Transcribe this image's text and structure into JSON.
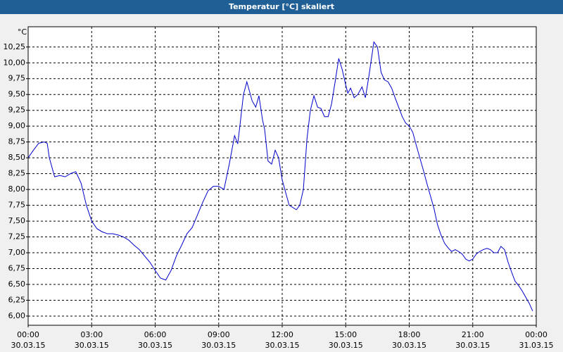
{
  "chart_data": {
    "type": "line",
    "title": "Temperatur [°C] skaliert",
    "y_label": "°C",
    "x": [
      0,
      0.25,
      0.5,
      0.75,
      0.9,
      1,
      1.25,
      1.5,
      1.75,
      2,
      2.25,
      2.5,
      2.75,
      3,
      3.25,
      3.5,
      3.75,
      4,
      4.25,
      4.5,
      4.75,
      5,
      5.25,
      5.5,
      5.75,
      6,
      6.25,
      6.5,
      6.75,
      7,
      7.25,
      7.5,
      7.75,
      8,
      8.25,
      8.5,
      8.75,
      9,
      9.25,
      9.5,
      9.75,
      9.9,
      10,
      10.17,
      10.33,
      10.58,
      10.75,
      10.9,
      11.07,
      11.17,
      11.33,
      11.5,
      11.67,
      11.83,
      12,
      12.33,
      12.67,
      12.83,
      13,
      13.17,
      13.33,
      13.5,
      13.67,
      13.83,
      14,
      14.17,
      14.33,
      14.5,
      14.67,
      14.83,
      15,
      15.1,
      15.23,
      15.4,
      15.57,
      15.77,
      15.93,
      16.1,
      16.33,
      16.5,
      16.67,
      16.83,
      17,
      17.17,
      17.33,
      17.5,
      17.67,
      17.83,
      18,
      18.17,
      18.33,
      18.5,
      18.67,
      18.83,
      19,
      19.17,
      19.33,
      19.5,
      19.67,
      19.83,
      20,
      20.17,
      20.33,
      20.5,
      20.67,
      20.83,
      21,
      21.17,
      21.33,
      21.5,
      21.67,
      21.83,
      22,
      22.17,
      22.33,
      22.5,
      22.67,
      22.83,
      23,
      23.17,
      23.33,
      23.5,
      23.67,
      23.83
    ],
    "values": [
      8.5,
      8.62,
      8.73,
      8.75,
      8.73,
      8.5,
      8.2,
      8.22,
      8.2,
      8.25,
      8.28,
      8.1,
      7.75,
      7.5,
      7.38,
      7.33,
      7.3,
      7.3,
      7.28,
      7.25,
      7.2,
      7.12,
      7.05,
      6.95,
      6.85,
      6.72,
      6.6,
      6.57,
      6.72,
      6.95,
      7.12,
      7.3,
      7.4,
      7.6,
      7.8,
      7.98,
      8.05,
      8.05,
      8.0,
      8.4,
      8.85,
      8.72,
      9.0,
      9.5,
      9.7,
      9.4,
      9.3,
      9.48,
      9.1,
      8.95,
      8.45,
      8.4,
      8.62,
      8.5,
      8.15,
      7.75,
      7.68,
      7.75,
      8.0,
      8.8,
      9.25,
      9.48,
      9.3,
      9.28,
      9.15,
      9.15,
      9.35,
      9.7,
      10.07,
      9.9,
      9.65,
      9.52,
      9.6,
      9.45,
      9.5,
      9.62,
      9.45,
      9.8,
      10.33,
      10.25,
      9.85,
      9.73,
      9.7,
      9.6,
      9.45,
      9.3,
      9.15,
      9.05,
      9.0,
      8.9,
      8.7,
      8.5,
      8.3,
      8.1,
      7.9,
      7.7,
      7.45,
      7.28,
      7.15,
      7.08,
      7.02,
      7.05,
      7.02,
      6.98,
      6.9,
      6.87,
      6.9,
      6.98,
      7.02,
      7.05,
      7.07,
      7.05,
      7.0,
      7.0,
      7.1,
      7.05,
      6.85,
      6.7,
      6.55,
      6.48,
      6.4,
      6.3,
      6.2,
      6.08
    ],
    "color": "#0000cc",
    "xlim": [
      0,
      24
    ],
    "xticks": [
      {
        "value": 0,
        "label": "00:00"
      },
      {
        "value": 3,
        "label": "03:00"
      },
      {
        "value": 6,
        "label": "06:00"
      },
      {
        "value": 9,
        "label": "09:00"
      },
      {
        "value": 12,
        "label": "12:00"
      },
      {
        "value": 15,
        "label": "15:00"
      },
      {
        "value": 18,
        "label": "18:00"
      },
      {
        "value": 21,
        "label": "21:00"
      },
      {
        "value": 24,
        "label": "00:00"
      }
    ],
    "xtick_dates": [
      "30.03.15",
      "30.03.15",
      "30.03.15",
      "30.03.15",
      "30.03.15",
      "30.03.15",
      "30.03.15",
      "30.03.15",
      "31.03.15"
    ],
    "ylim": [
      5.855,
      10.57
    ],
    "yticks": [
      {
        "value": 6,
        "label": "6,00"
      },
      {
        "value": 6.25,
        "label": "6,25"
      },
      {
        "value": 6.5,
        "label": "6,50"
      },
      {
        "value": 6.75,
        "label": "6,75"
      },
      {
        "value": 7,
        "label": "7,00"
      },
      {
        "value": 7.25,
        "label": "7,25"
      },
      {
        "value": 7.5,
        "label": "7,50"
      },
      {
        "value": 7.75,
        "label": "7,75"
      },
      {
        "value": 8,
        "label": "8,00"
      },
      {
        "value": 8.25,
        "label": "8,25"
      },
      {
        "value": 8.5,
        "label": "8,50"
      },
      {
        "value": 8.75,
        "label": "8,75"
      },
      {
        "value": 9,
        "label": "9,00"
      },
      {
        "value": 9.25,
        "label": "9,25"
      },
      {
        "value": 9.5,
        "label": "9,50"
      },
      {
        "value": 9.75,
        "label": "9,75"
      },
      {
        "value": 10,
        "label": "10,00"
      },
      {
        "value": 10.25,
        "label": "10,25"
      }
    ],
    "grid": true
  }
}
